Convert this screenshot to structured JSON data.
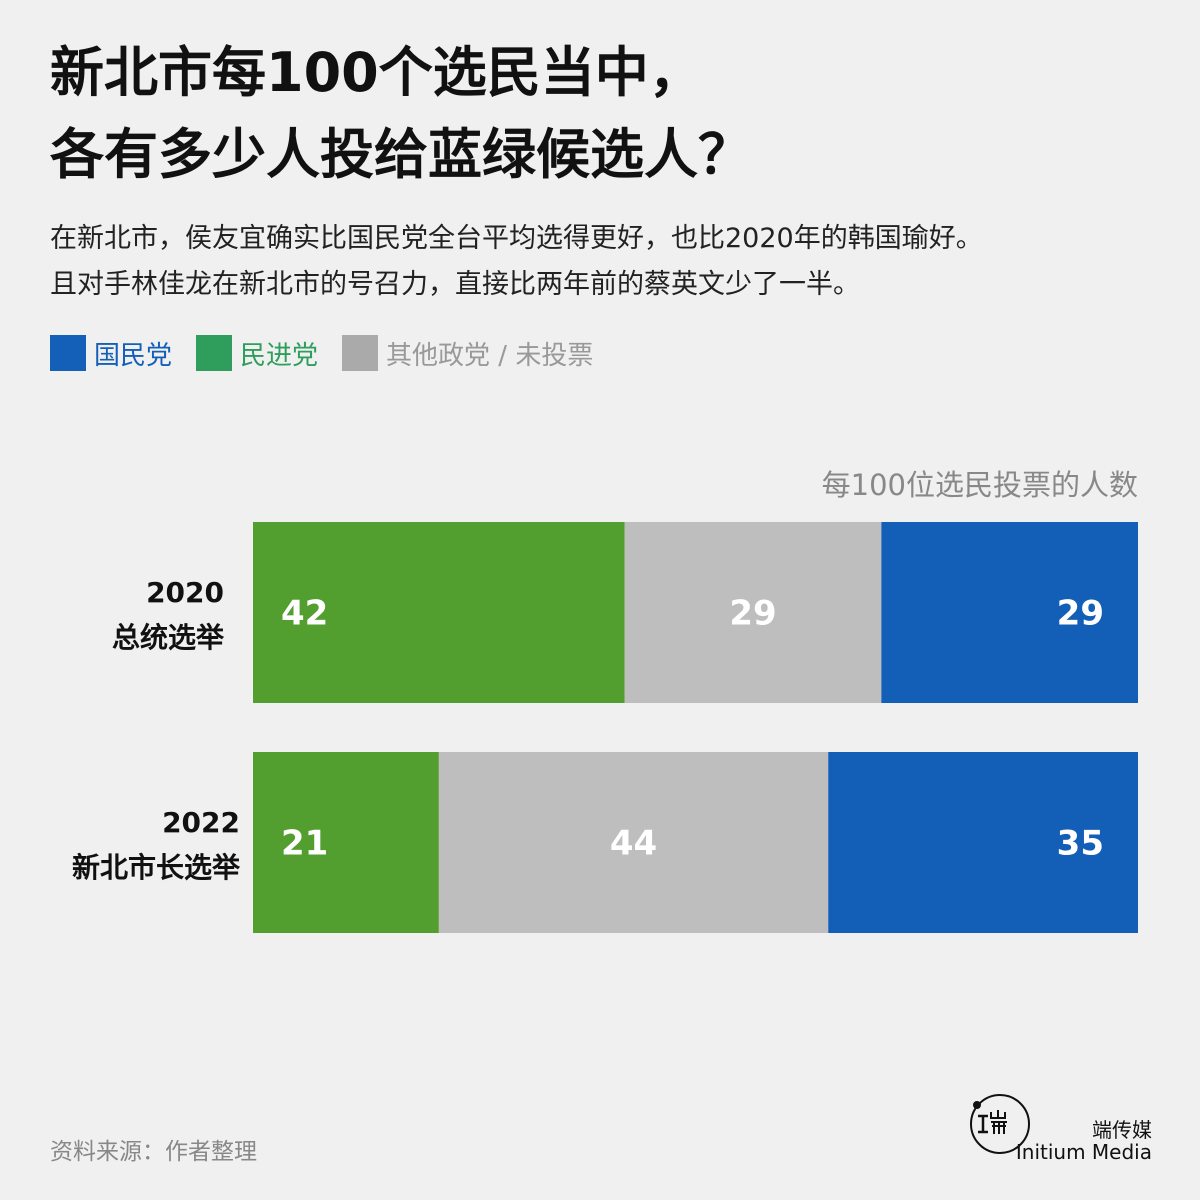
{
  "title_lines": [
    "新北市每100个选民当中，",
    "各有多少人投给蓝绿候选人？"
  ],
  "subtitle_lines": [
    "在新北市，侯友宜确实比国民党全台平均选得更好，也比2020年的韩国瑜好。",
    "且对手林佳龙在新北市的号召力，直接比两年前的蔡英文少了一半。"
  ],
  "legend": [
    {
      "label": "国民党",
      "color": "#1460b8",
      "text_color": "#1460b8"
    },
    {
      "label": "民进党",
      "color": "#2f9e5c",
      "text_color": "#2f9e5c"
    },
    {
      "label": "其他政党 / 未投票",
      "color": "#aaaaaa",
      "text_color": "#999999"
    }
  ],
  "chart_data": {
    "type": "bar",
    "orientation": "horizontal",
    "stacked": true,
    "unit_label": "每100位选民投票的人数",
    "categories": [
      [
        "2020",
        "总统选举"
      ],
      [
        "2022",
        "新北市长选举"
      ]
    ],
    "series": [
      {
        "name": "民进党",
        "color": "#529e2f",
        "values": [
          42,
          21
        ]
      },
      {
        "name": "其他政党 / 未投票",
        "color": "#bebebe",
        "values": [
          29,
          44
        ]
      },
      {
        "name": "国民党",
        "color": "#135fb7",
        "values": [
          29,
          35
        ]
      }
    ],
    "xlim": [
      0,
      100
    ]
  },
  "source": "资料来源：作者整理",
  "brand": {
    "cn": "端传媒",
    "en": "Initium Media"
  }
}
